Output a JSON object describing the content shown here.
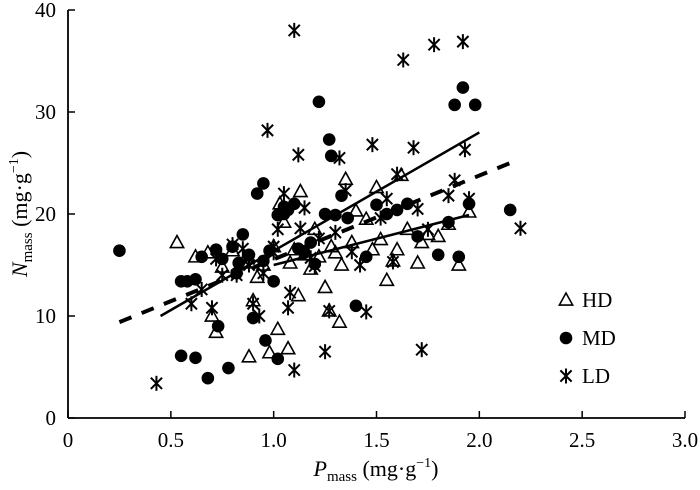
{
  "chart_data": {
    "type": "scatter",
    "xlabel": {
      "main": "P",
      "sub": "mass",
      "unit": " (mg·g",
      "sup": "−1",
      "close": ")"
    },
    "ylabel": {
      "main": "N",
      "sub": "mass",
      "unit": " (mg·g",
      "sup": "−1",
      "close": ")"
    },
    "xlim": [
      0,
      3.0
    ],
    "ylim": [
      0,
      40
    ],
    "xticks": [
      "0",
      "0.5",
      "1.0",
      "1.5",
      "2.0",
      "2.5",
      "3.0"
    ],
    "yticks": [
      "0",
      "10",
      "20",
      "30",
      "40"
    ],
    "grid": false,
    "legend_position": "bottom-right",
    "series": [
      {
        "name": "HD",
        "marker": "triangle",
        "points": [
          [
            0.53,
            17.2
          ],
          [
            0.62,
            15.8
          ],
          [
            0.7,
            10.0
          ],
          [
            0.72,
            8.4
          ],
          [
            0.75,
            14.8
          ],
          [
            0.8,
            16.4
          ],
          [
            0.85,
            15.2
          ],
          [
            0.88,
            6.0
          ],
          [
            0.9,
            11.5
          ],
          [
            0.92,
            13.8
          ],
          [
            0.95,
            15.0
          ],
          [
            0.98,
            6.4
          ],
          [
            1.0,
            16.8
          ],
          [
            1.02,
            8.7
          ],
          [
            1.05,
            19.2
          ],
          [
            1.07,
            6.8
          ],
          [
            1.08,
            15.2
          ],
          [
            1.1,
            16.5
          ],
          [
            1.12,
            12.0
          ],
          [
            1.13,
            22.2
          ],
          [
            1.15,
            16.0
          ],
          [
            1.18,
            14.6
          ],
          [
            1.2,
            18.5
          ],
          [
            1.22,
            15.8
          ],
          [
            1.25,
            12.8
          ],
          [
            1.27,
            10.5
          ],
          [
            1.3,
            16.2
          ],
          [
            1.32,
            9.4
          ],
          [
            1.33,
            15.0
          ],
          [
            1.35,
            23.4
          ],
          [
            1.38,
            17.2
          ],
          [
            1.4,
            20.3
          ],
          [
            1.45,
            19.5
          ],
          [
            1.48,
            16.5
          ],
          [
            1.5,
            22.6
          ],
          [
            1.52,
            17.5
          ],
          [
            1.55,
            13.5
          ],
          [
            1.58,
            15.4
          ],
          [
            1.6,
            16.5
          ],
          [
            1.62,
            23.8
          ],
          [
            1.65,
            18.5
          ],
          [
            1.7,
            15.2
          ],
          [
            1.72,
            17.2
          ],
          [
            1.75,
            18.0
          ],
          [
            1.8,
            17.8
          ],
          [
            1.85,
            19.0
          ],
          [
            1.9,
            15.0
          ],
          [
            1.95,
            20.2
          ],
          [
            0.68,
            16.2
          ],
          [
            1.03,
            21.0
          ],
          [
            1.28,
            16.8
          ]
        ]
      },
      {
        "name": "MD",
        "marker": "circle",
        "points": [
          [
            0.25,
            16.4
          ],
          [
            0.55,
            6.1
          ],
          [
            0.55,
            13.4
          ],
          [
            0.62,
            13.6
          ],
          [
            0.62,
            5.9
          ],
          [
            0.65,
            15.8
          ],
          [
            0.68,
            3.9
          ],
          [
            0.72,
            16.5
          ],
          [
            0.73,
            9.0
          ],
          [
            0.78,
            4.9
          ],
          [
            0.8,
            16.8
          ],
          [
            0.82,
            14.2
          ],
          [
            0.83,
            15.2
          ],
          [
            0.85,
            18.0
          ],
          [
            0.88,
            16.0
          ],
          [
            0.9,
            9.8
          ],
          [
            0.92,
            22.0
          ],
          [
            0.95,
            23.0
          ],
          [
            0.96,
            7.6
          ],
          [
            0.98,
            16.4
          ],
          [
            1.0,
            13.4
          ],
          [
            1.02,
            19.9
          ],
          [
            1.02,
            5.8
          ],
          [
            1.05,
            20.0
          ],
          [
            1.07,
            20.4
          ],
          [
            1.1,
            21.0
          ],
          [
            1.12,
            16.6
          ],
          [
            1.15,
            16.2
          ],
          [
            1.18,
            17.2
          ],
          [
            1.2,
            15.1
          ],
          [
            1.22,
            31.0
          ],
          [
            1.25,
            20.0
          ],
          [
            1.27,
            27.3
          ],
          [
            1.28,
            25.7
          ],
          [
            1.3,
            19.9
          ],
          [
            1.33,
            21.8
          ],
          [
            1.36,
            19.6
          ],
          [
            1.4,
            11.0
          ],
          [
            1.45,
            15.8
          ],
          [
            1.5,
            20.9
          ],
          [
            1.55,
            20.0
          ],
          [
            1.6,
            20.4
          ],
          [
            1.65,
            21.0
          ],
          [
            1.7,
            17.8
          ],
          [
            1.8,
            16.0
          ],
          [
            1.85,
            19.2
          ],
          [
            1.88,
            30.7
          ],
          [
            1.92,
            32.4
          ],
          [
            1.95,
            21.0
          ],
          [
            1.98,
            30.7
          ],
          [
            1.9,
            15.8
          ],
          [
            2.15,
            20.4
          ],
          [
            0.58,
            13.4
          ],
          [
            0.95,
            15.4
          ],
          [
            1.05,
            20.7
          ],
          [
            0.75,
            15.6
          ]
        ]
      },
      {
        "name": "LD",
        "marker": "asterisk",
        "points": [
          [
            0.43,
            3.4
          ],
          [
            0.6,
            11.2
          ],
          [
            0.65,
            12.6
          ],
          [
            0.7,
            10.8
          ],
          [
            0.72,
            15.6
          ],
          [
            0.75,
            14.0
          ],
          [
            0.8,
            17.0
          ],
          [
            0.82,
            14.0
          ],
          [
            0.85,
            16.6
          ],
          [
            0.88,
            15.0
          ],
          [
            0.9,
            11.2
          ],
          [
            0.93,
            10.0
          ],
          [
            0.95,
            14.2
          ],
          [
            0.97,
            28.2
          ],
          [
            1.0,
            16.8
          ],
          [
            1.02,
            18.5
          ],
          [
            1.05,
            22.0
          ],
          [
            1.07,
            10.8
          ],
          [
            1.08,
            12.3
          ],
          [
            1.1,
            38.0
          ],
          [
            1.1,
            4.7
          ],
          [
            1.12,
            25.8
          ],
          [
            1.13,
            18.6
          ],
          [
            1.15,
            20.6
          ],
          [
            1.18,
            15.7
          ],
          [
            1.2,
            14.9
          ],
          [
            1.22,
            17.6
          ],
          [
            1.25,
            6.5
          ],
          [
            1.27,
            10.5
          ],
          [
            1.3,
            18.2
          ],
          [
            1.32,
            25.5
          ],
          [
            1.35,
            22.3
          ],
          [
            1.38,
            16.3
          ],
          [
            1.42,
            15.0
          ],
          [
            1.45,
            10.4
          ],
          [
            1.48,
            26.8
          ],
          [
            1.52,
            19.6
          ],
          [
            1.55,
            21.5
          ],
          [
            1.58,
            15.3
          ],
          [
            1.6,
            23.9
          ],
          [
            1.63,
            35.1
          ],
          [
            1.68,
            26.5
          ],
          [
            1.7,
            20.5
          ],
          [
            1.72,
            6.7
          ],
          [
            1.75,
            18.5
          ],
          [
            1.78,
            36.6
          ],
          [
            1.85,
            21.8
          ],
          [
            1.88,
            23.3
          ],
          [
            1.92,
            36.9
          ],
          [
            1.93,
            26.3
          ],
          [
            1.95,
            21.5
          ],
          [
            2.2,
            18.6
          ],
          [
            1.0,
            16.2
          ],
          [
            0.88,
            15.6
          ]
        ]
      }
    ],
    "fit_lines": [
      {
        "series": "HD",
        "style": "solid",
        "x": [
          1.0,
          1.95
        ],
        "y": [
          15.0,
          19.9
        ]
      },
      {
        "series": "MD",
        "style": "solid",
        "x": [
          0.45,
          2.0
        ],
        "y": [
          10.0,
          28.0
        ]
      },
      {
        "series": "LD",
        "style": "dashed",
        "x": [
          0.25,
          2.15
        ],
        "y": [
          9.4,
          25.0
        ]
      }
    ]
  }
}
